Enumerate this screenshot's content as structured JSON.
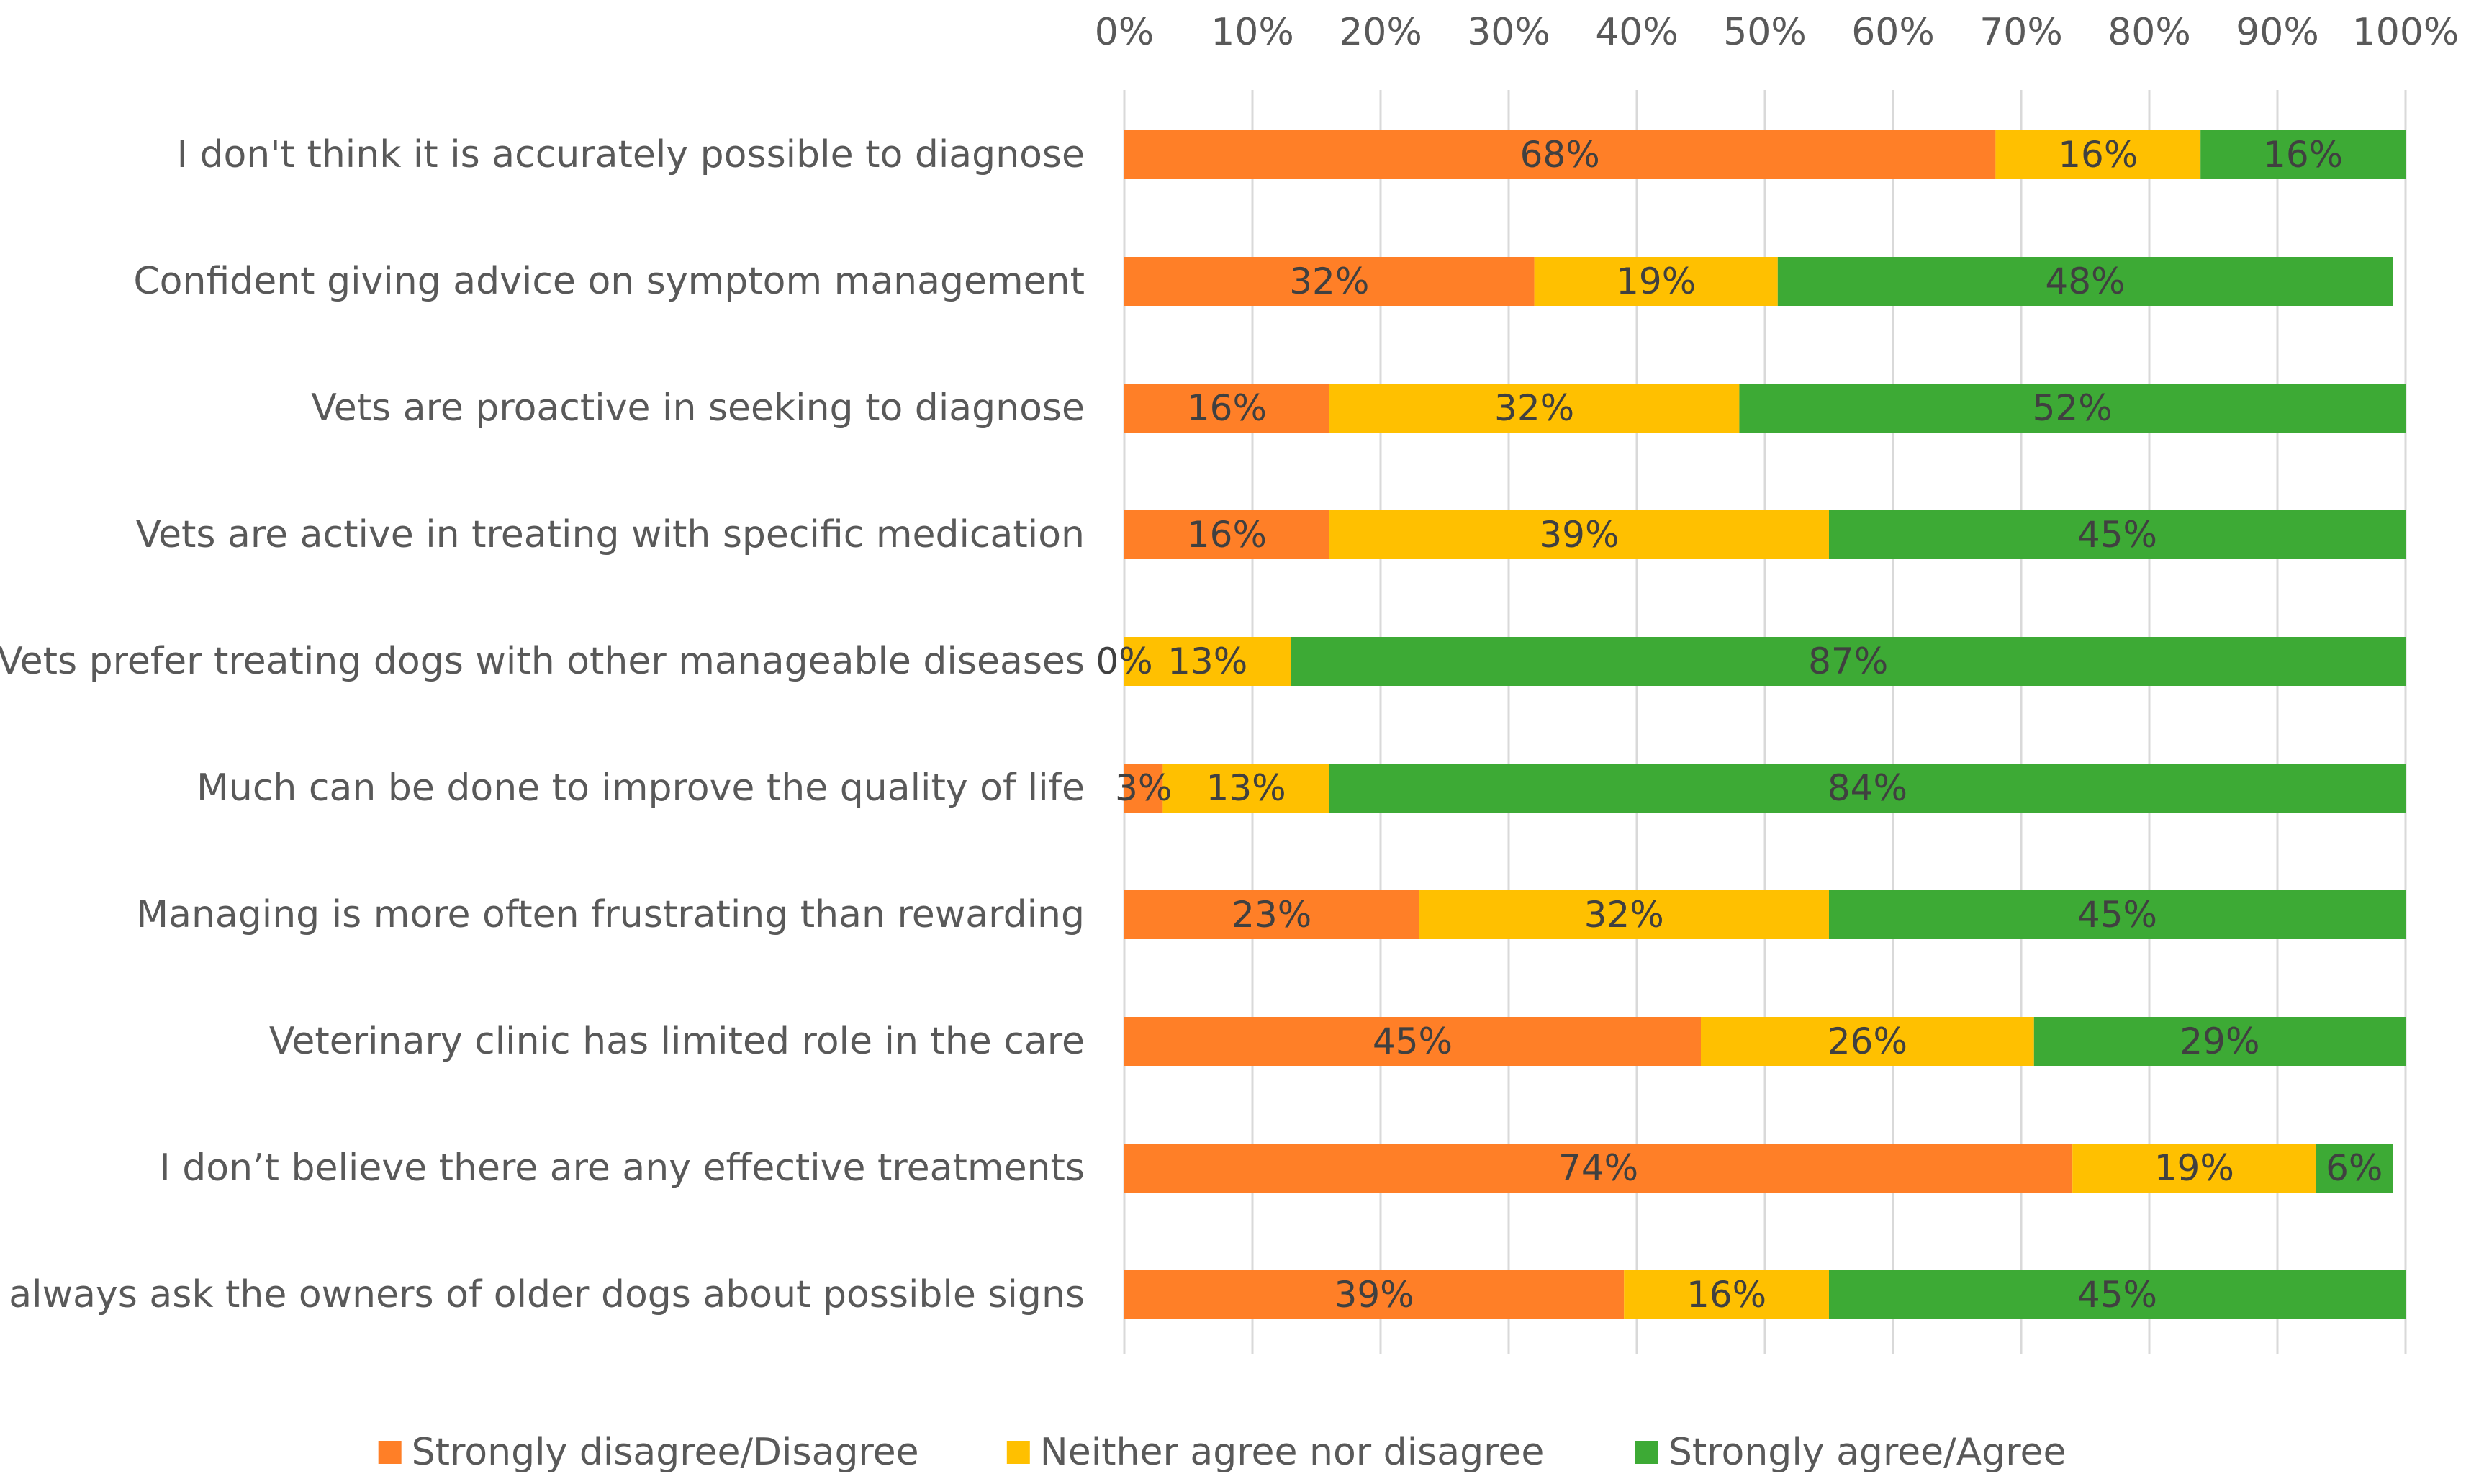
{
  "chart_data": {
    "type": "bar",
    "orientation": "horizontal",
    "stacked": true,
    "title": "",
    "xlabel": "",
    "ylabel": "",
    "xlim": [
      0,
      100
    ],
    "x_ticks": [
      "0%",
      "10%",
      "20%",
      "30%",
      "40%",
      "50%",
      "60%",
      "70%",
      "80%",
      "90%",
      "100%"
    ],
    "x_axis_position": "top",
    "grid": true,
    "legend_position": "bottom",
    "categories": [
      "I don't think it is accurately possible to diagnose",
      "Confident giving advice on symptom management",
      "Vets are proactive in seeking to diagnose",
      "Vets are active in treating with specific medication",
      "Vets prefer treating dogs with other manageable diseases",
      "Much can be done to improve the quality of life",
      "Managing is more often frustrating than rewarding",
      "Veterinary clinic has limited role in the care",
      "I don’t believe there are any effective treatments",
      "I always ask the owners of older dogs about possible signs"
    ],
    "series": [
      {
        "name": "Strongly disagree/Disagree",
        "color": "#FF7F27",
        "values": [
          68,
          32,
          16,
          16,
          0,
          3,
          23,
          45,
          74,
          39
        ],
        "labels": [
          "68%",
          "32%",
          "16%",
          "16%",
          "0%",
          "3%",
          "23%",
          "45%",
          "74%",
          "39%"
        ]
      },
      {
        "name": "Neither agree nor disagree",
        "color": "#FFC000",
        "values": [
          16,
          19,
          32,
          39,
          13,
          13,
          32,
          26,
          19,
          16
        ],
        "labels": [
          "16%",
          "19%",
          "32%",
          "39%",
          "13%",
          "13%",
          "32%",
          "26%",
          "19%",
          "16%"
        ]
      },
      {
        "name": "Strongly agree/Agree",
        "color": "#3DAA35",
        "values": [
          16,
          48,
          52,
          45,
          87,
          84,
          45,
          29,
          6,
          45
        ],
        "labels": [
          "16%",
          "48%",
          "52%",
          "45%",
          "87%",
          "84%",
          "45%",
          "29%",
          "6%",
          "45%"
        ]
      }
    ]
  }
}
